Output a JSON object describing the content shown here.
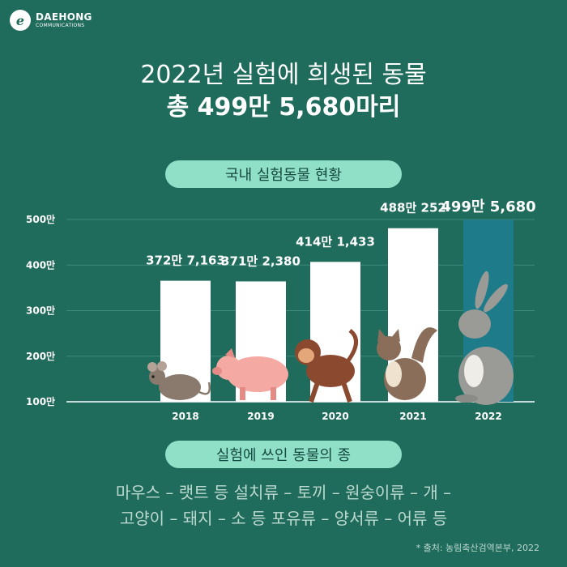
{
  "logo": {
    "name": "DAEHONG",
    "sub": "COMMUNICATIONS",
    "mark": "e"
  },
  "title": "2022년 실험에 희생된 동물",
  "subtitle": "총 499만 5,680마리",
  "chart_section_label": "국내 실험동물 현황",
  "species_section_label": "실험에 쓰인 동물의 종",
  "species_line1": "마우스 – 랫트 등 설치류 – 토끼 – 원숭이류 – 개 –",
  "species_line2": "고양이 – 돼지 – 소 등 포유류 – 양서류 – 어류 등",
  "source": "* 출처: 농림축산검역본부, 2022",
  "colors": {
    "background": "#1f6b5c",
    "bar": "#ffffff",
    "highlight_bar": "#1e7c8a",
    "pill": "#8fe0c7"
  },
  "chart_data": {
    "type": "bar",
    "categories": [
      "2018",
      "2019",
      "2020",
      "2021",
      "2022"
    ],
    "values": [
      3727163,
      3712380,
      4141433,
      4880252,
      4995680
    ],
    "value_labels": [
      "372만 7,163",
      "371만 2,380",
      "414만 1,433",
      "488만 252",
      "499만 5,680"
    ],
    "y_ticks": [
      1000000,
      2000000,
      3000000,
      4000000,
      5000000
    ],
    "y_tick_labels": [
      "100만",
      "200만",
      "300만",
      "400만",
      "500만"
    ],
    "ylim": [
      1000000,
      5000000
    ],
    "highlight_index": 4,
    "grid": true,
    "series_icons": [
      "mouse-illustration",
      "pig-illustration",
      "monkey-illustration",
      "cat-illustration",
      "rabbit-illustration"
    ]
  }
}
